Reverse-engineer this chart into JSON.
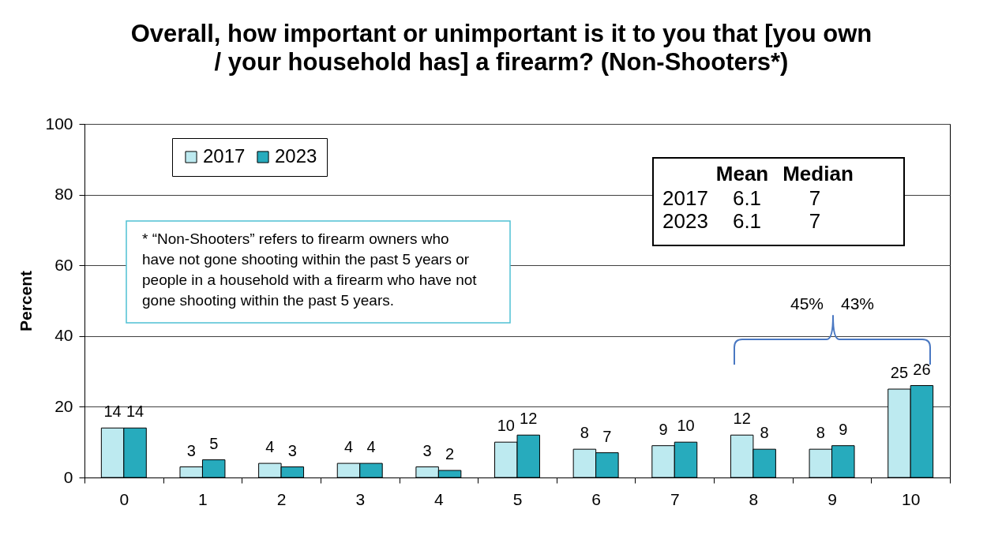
{
  "chart_data": {
    "type": "bar",
    "title": "Overall, how important or unimportant is it to you that [you own / your household has] a firearm? (Non-Shooters*)",
    "ylabel": "Percent",
    "categories": [
      "0",
      "1",
      "2",
      "3",
      "4",
      "5",
      "6",
      "7",
      "8",
      "9",
      "10"
    ],
    "series": [
      {
        "name": "2017",
        "color": "#bdeaf0",
        "values": [
          14,
          3,
          4,
          4,
          3,
          10,
          8,
          9,
          12,
          8,
          25
        ]
      },
      {
        "name": "2023",
        "color": "#27abbd",
        "values": [
          14,
          5,
          3,
          4,
          2,
          12,
          7,
          10,
          8,
          9,
          26
        ]
      }
    ],
    "ylim": [
      0,
      100
    ],
    "yticks": [
      0,
      20,
      40,
      60,
      80,
      100
    ],
    "grid": "y",
    "legend": "top left",
    "data_labels": true,
    "annotations": [
      "* “Non-Shooters” refers to firearm owners who have not gone shooting within the past 5 years or people in a household with a firearm who have not gone shooting within the past 5 years.",
      "Mean",
      "Median",
      "2017",
      "6.1",
      "7",
      "2023",
      "6.1",
      "7",
      "45%",
      "43%"
    ]
  }
}
